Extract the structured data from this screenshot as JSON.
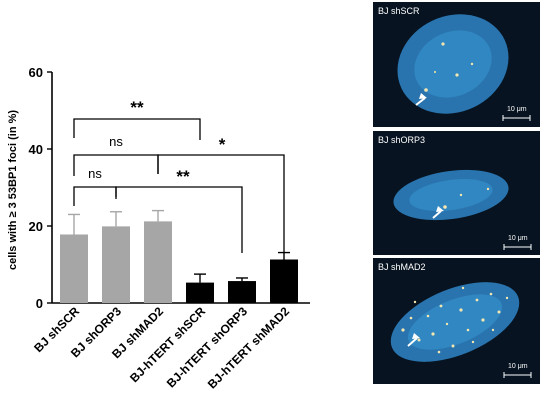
{
  "chart_data": {
    "type": "bar",
    "ylabel": "cells with ≥ 3 53BP1 foci (in %)",
    "xlabel": "",
    "title": "",
    "ylim": [
      0,
      60
    ],
    "yticks": [
      "0",
      "20",
      "40",
      "60"
    ],
    "categories": [
      "BJ shSCR",
      "BJ shORP3",
      "BJ shMAD2",
      "BJ-hTERT shSCR",
      "BJ-hTERT shORP3",
      "BJ-hTERT shMAD2"
    ],
    "values": [
      17.8,
      19.9,
      21.2,
      5.3,
      5.7,
      11.3
    ],
    "errors": [
      5.2,
      3.8,
      2.8,
      2.2,
      0.8,
      1.8
    ],
    "colors": [
      "#a6a6a6",
      "#a6a6a6",
      "#a6a6a6",
      "#000000",
      "#000000",
      "#000000"
    ],
    "grid": false,
    "significance": [
      {
        "label": "**",
        "from": 0,
        "to": 3
      },
      {
        "label": "ns",
        "from": 0,
        "to": 2
      },
      {
        "label": "*",
        "from": 2,
        "to": 5
      },
      {
        "label": "ns",
        "from": 0,
        "to": 1
      },
      {
        "label": "**",
        "from": 1,
        "to": 4
      }
    ]
  },
  "micrographs": [
    {
      "label": "BJ shSCR",
      "scale_bar": "10 μm"
    },
    {
      "label": "BJ shORP3",
      "scale_bar": "10 μm"
    },
    {
      "label": "BJ shMAD2",
      "scale_bar": "10 μm"
    }
  ],
  "colors": {
    "nucleus": "#2f86c8",
    "foci": "#f4e6b0",
    "background": "#071320",
    "arrow": "#ffffff"
  }
}
